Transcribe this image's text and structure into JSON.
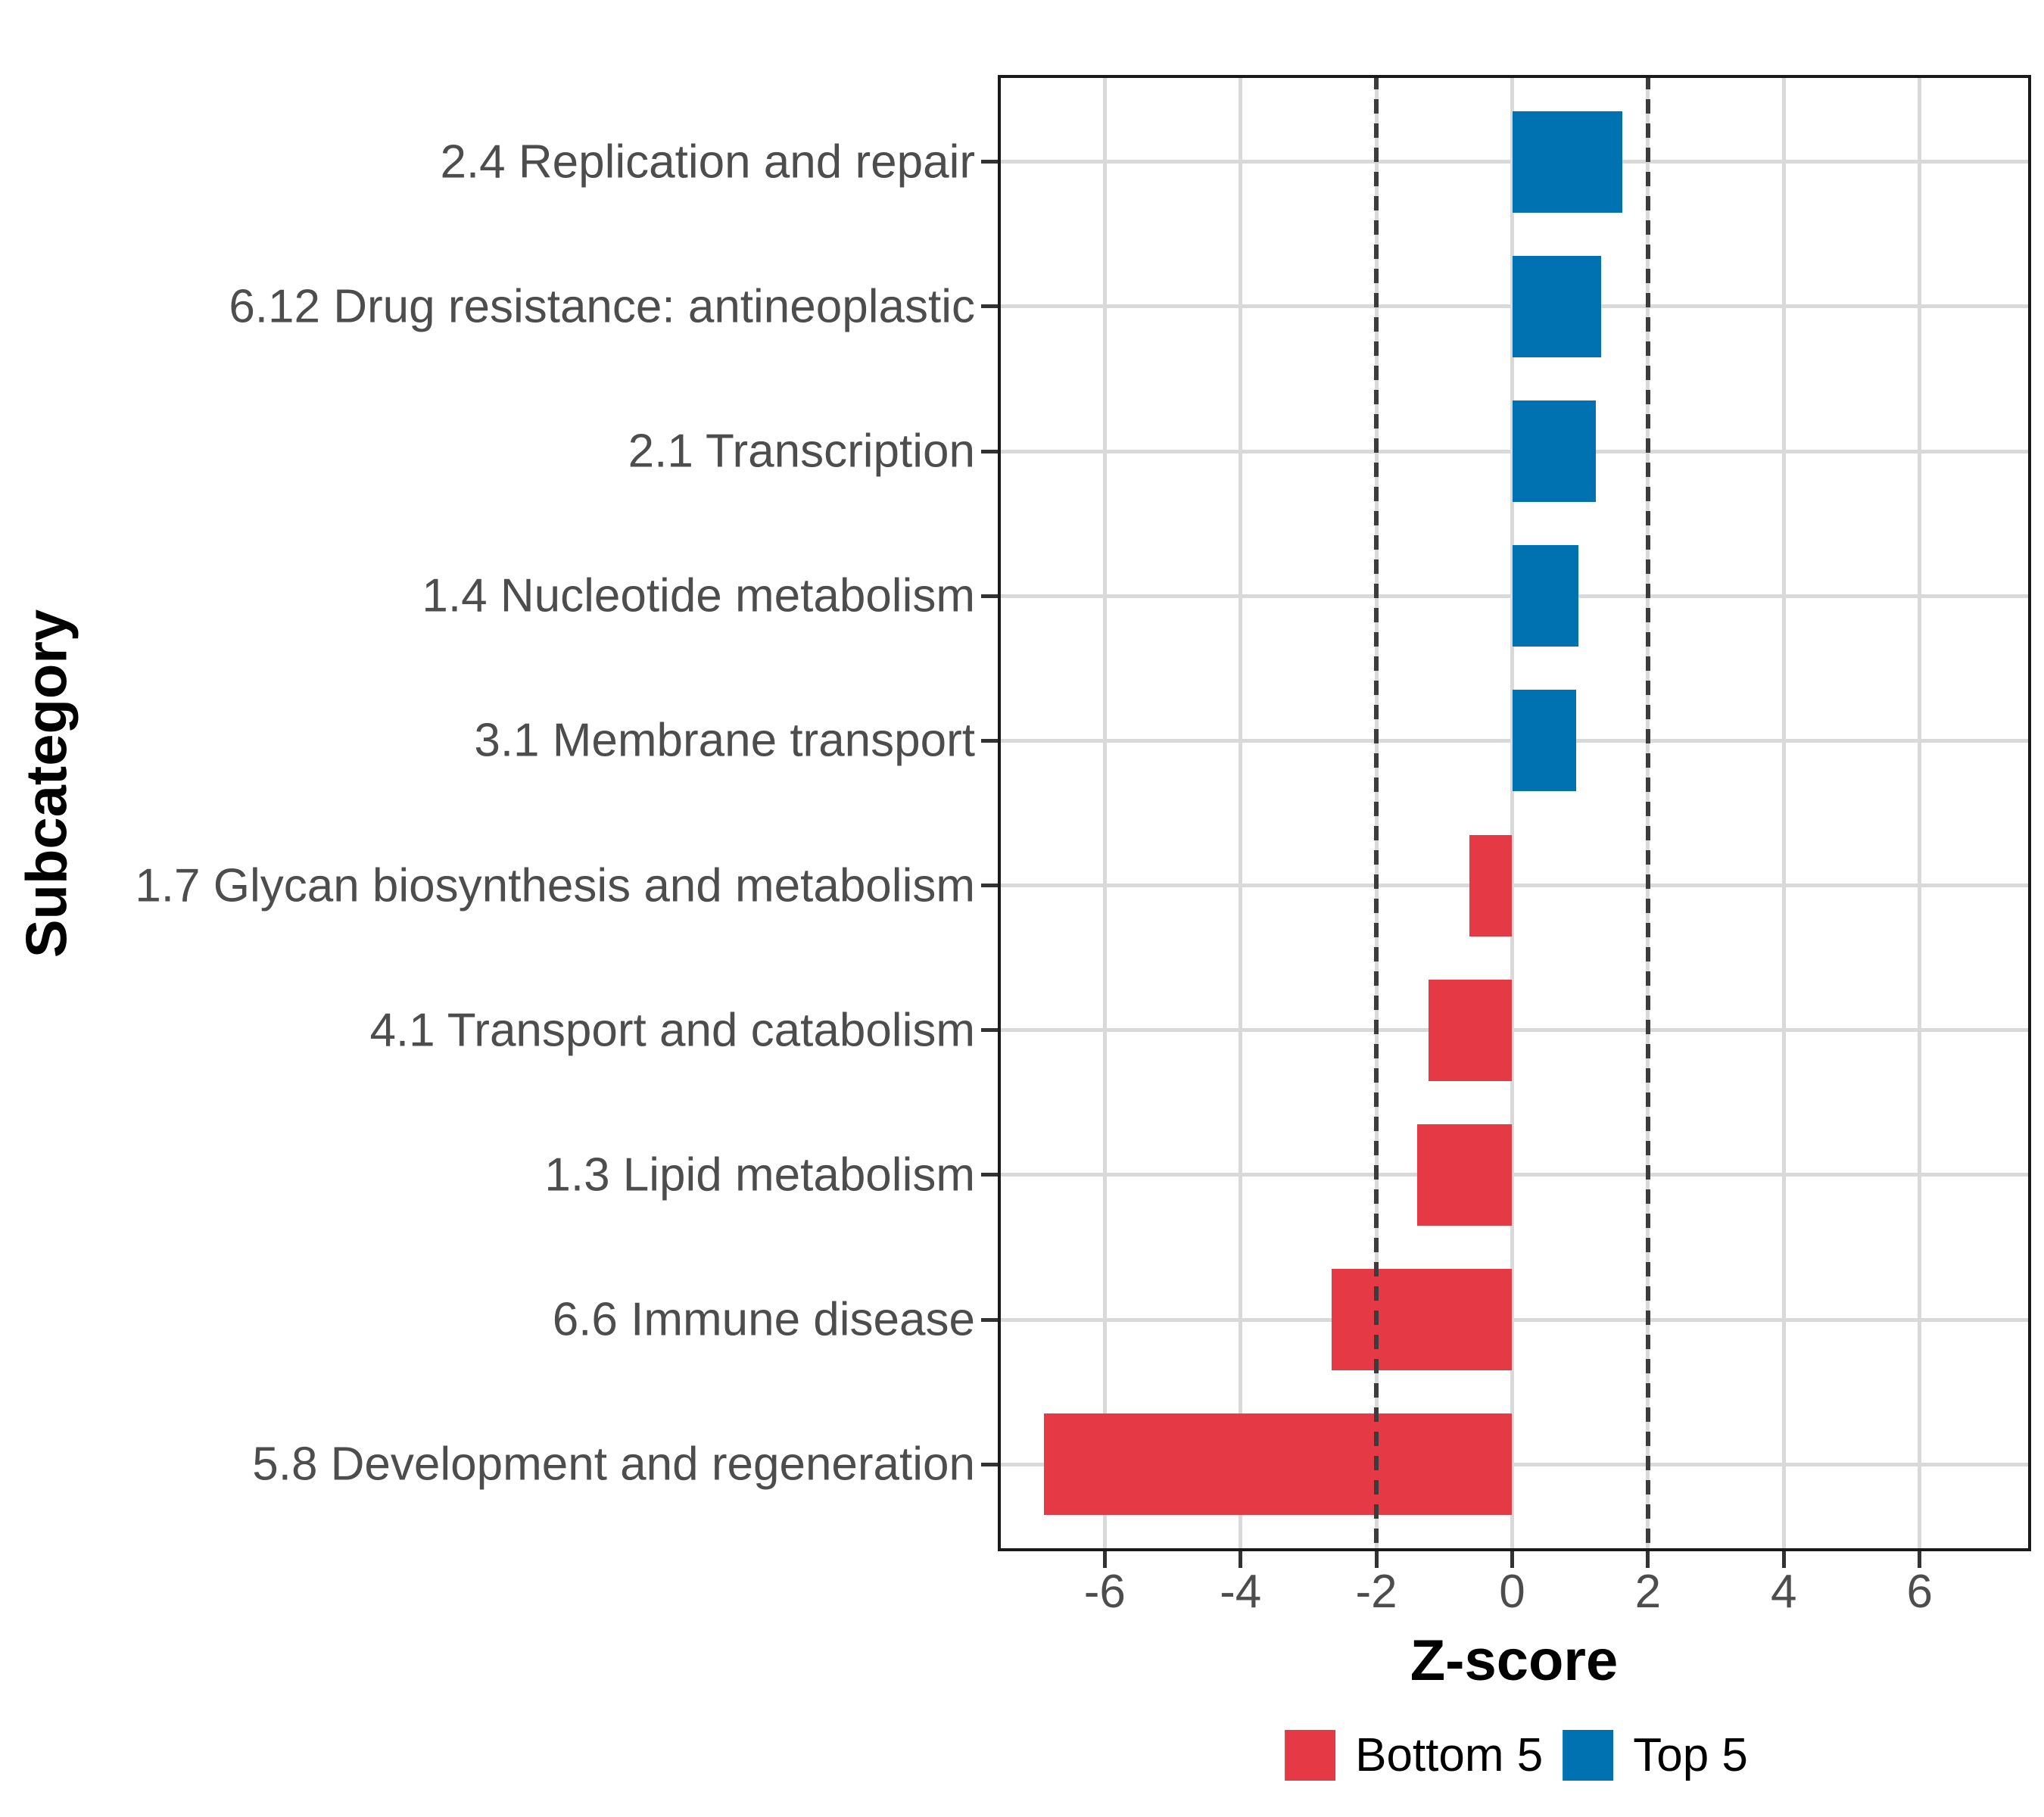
{
  "chart_data": {
    "type": "bar",
    "orientation": "horizontal",
    "xlabel": "Z-score",
    "ylabel": "Subcategory",
    "categories": [
      "2.4 Replication and repair",
      "6.12 Drug resistance: antineoplastic",
      "2.1 Transcription",
      "1.4 Nucleotide metabolism",
      "3.1 Membrane transport",
      "1.7 Glycan biosynthesis and metabolism",
      "4.1 Transport and catabolism",
      "1.3 Lipid metabolism",
      "6.6 Immune disease",
      "5.8 Development and regeneration"
    ],
    "values": [
      1.62,
      1.31,
      1.23,
      0.98,
      0.94,
      -0.63,
      -1.23,
      -1.4,
      -2.66,
      -6.9
    ],
    "groups": [
      "Top 5",
      "Top 5",
      "Top 5",
      "Top 5",
      "Top 5",
      "Bottom 5",
      "Bottom 5",
      "Bottom 5",
      "Bottom 5",
      "Bottom 5"
    ],
    "series_colors": {
      "Bottom 5": "#E63946",
      "Top 5": "#0072B2"
    },
    "xticks": [
      -6,
      -4,
      -2,
      0,
      2,
      4,
      6
    ],
    "xlim": [
      -7.6,
      7.6
    ],
    "reference_lines": [
      -2,
      2
    ],
    "reference_line_style": "dashed",
    "grid": "major-only",
    "grid_color": "#d9d9d9",
    "reference_line_color": "#3c3c3c",
    "axis_text_color": "#4d4d4d",
    "legend": {
      "position": "bottom",
      "entries": [
        {
          "label": "Bottom 5",
          "color": "#E63946"
        },
        {
          "label": "Top 5",
          "color": "#0072B2"
        }
      ]
    }
  }
}
